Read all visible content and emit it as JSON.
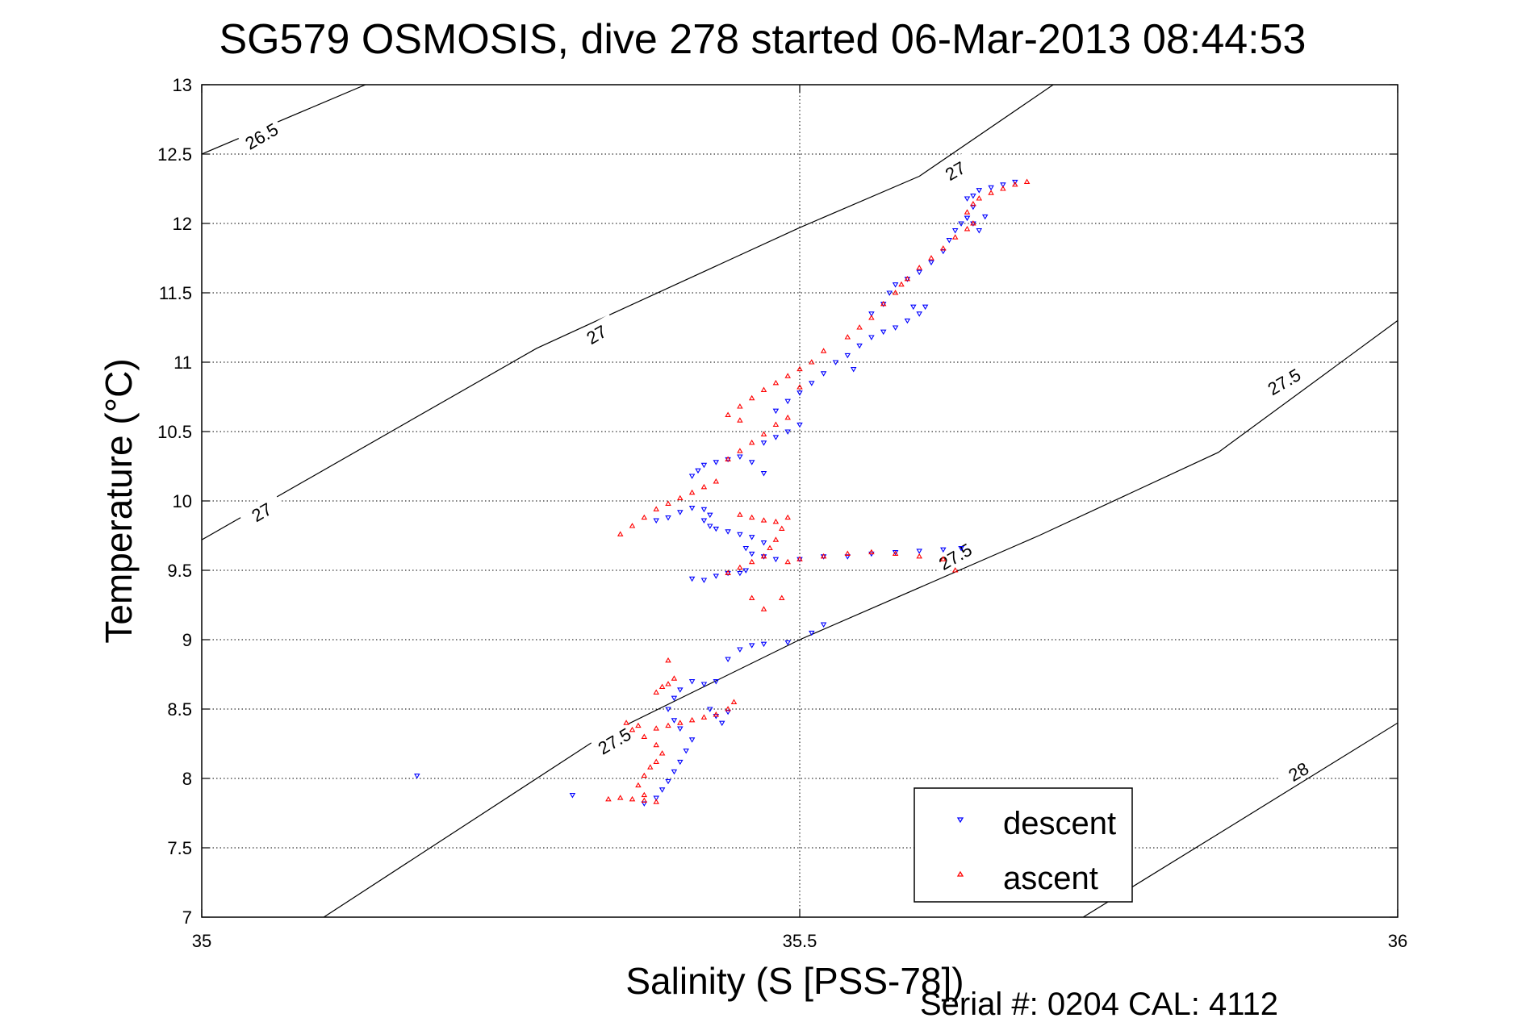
{
  "chart_data": {
    "type": "scatter",
    "title": "SG579 OSMOSIS, dive 278 started 06-Mar-2013 08:44:53",
    "xlabel": "Salinity (S [PSS-78])",
    "ylabel": "Temperature (°C)",
    "footer": "Serial #: 0204  CAL: 4112",
    "xlim": [
      35,
      36
    ],
    "ylim": [
      7,
      13
    ],
    "xticks": [
      "35",
      "35.5",
      "36"
    ],
    "yticks": [
      "7",
      "7.5",
      "8",
      "8.5",
      "9",
      "9.5",
      "10",
      "10.5",
      "11",
      "11.5",
      "12",
      "12.5",
      "13"
    ],
    "grid": true,
    "legend_position": "bottom-right",
    "density_contours": [
      {
        "label": "26.5",
        "points": [
          [
            35.0,
            12.5
          ],
          [
            35.137,
            13.0
          ]
        ],
        "label_at": [
          35.05,
          12.63
        ],
        "label_angle": -30
      },
      {
        "label": "27",
        "points": [
          [
            35.0,
            9.72
          ],
          [
            35.28,
            11.1
          ],
          [
            35.5,
            11.97
          ],
          [
            35.6,
            12.34
          ],
          [
            35.712,
            13.0
          ]
        ],
        "label_at": [
          35.05,
          9.92
        ],
        "label_angle": -30
      },
      {
        "label": "27",
        "points": [
          [
            35.0,
            9.72
          ],
          [
            35.28,
            11.1
          ],
          [
            35.5,
            11.97
          ],
          [
            35.6,
            12.34
          ],
          [
            35.712,
            13.0
          ]
        ],
        "label_at": [
          35.33,
          11.2
        ],
        "label_angle": -30
      },
      {
        "label": "27",
        "points": [
          [
            35.0,
            9.72
          ],
          [
            35.28,
            11.1
          ],
          [
            35.5,
            11.97
          ],
          [
            35.6,
            12.34
          ],
          [
            35.712,
            13.0
          ]
        ],
        "label_at": [
          35.63,
          12.38
        ],
        "label_angle": -30
      },
      {
        "label": "27.5",
        "points": [
          [
            35.102,
            7.0
          ],
          [
            35.2,
            7.55
          ],
          [
            35.33,
            8.28
          ],
          [
            35.5,
            9.0
          ],
          [
            35.7,
            9.75
          ],
          [
            35.85,
            10.35
          ],
          [
            36.0,
            11.3
          ]
        ],
        "label_at": [
          35.345,
          8.27
        ],
        "label_angle": -30
      },
      {
        "label": "27.5",
        "points": [
          [
            35.102,
            7.0
          ],
          [
            35.2,
            7.55
          ],
          [
            35.33,
            8.28
          ],
          [
            35.5,
            9.0
          ],
          [
            35.7,
            9.75
          ],
          [
            35.85,
            10.35
          ],
          [
            36.0,
            11.3
          ]
        ],
        "label_at": [
          35.63,
          9.6
        ],
        "label_angle": -30
      },
      {
        "label": "27.5",
        "points": [
          [
            35.102,
            7.0
          ],
          [
            35.2,
            7.55
          ],
          [
            35.33,
            8.28
          ],
          [
            35.5,
            9.0
          ],
          [
            35.7,
            9.75
          ],
          [
            35.85,
            10.35
          ],
          [
            36.0,
            11.3
          ]
        ],
        "label_at": [
          35.905,
          10.86
        ],
        "label_angle": -30
      },
      {
        "label": "28",
        "points": [
          [
            35.737,
            7.0
          ],
          [
            35.85,
            7.6
          ],
          [
            36.0,
            8.4
          ]
        ],
        "label_at": [
          35.917,
          8.05
        ],
        "label_angle": -30
      }
    ],
    "series": [
      {
        "name": "descent",
        "color": "#0000ff",
        "marker": "triangle-down",
        "points": [
          [
            35.18,
            8.02
          ],
          [
            35.31,
            7.88
          ],
          [
            35.37,
            7.82
          ],
          [
            35.38,
            7.86
          ],
          [
            35.385,
            7.92
          ],
          [
            35.39,
            7.98
          ],
          [
            35.395,
            8.05
          ],
          [
            35.4,
            8.12
          ],
          [
            35.405,
            8.2
          ],
          [
            35.41,
            8.28
          ],
          [
            35.4,
            8.36
          ],
          [
            35.395,
            8.42
          ],
          [
            35.39,
            8.5
          ],
          [
            35.395,
            8.58
          ],
          [
            35.4,
            8.64
          ],
          [
            35.41,
            8.7
          ],
          [
            35.42,
            8.68
          ],
          [
            35.43,
            8.7
          ],
          [
            35.425,
            8.5
          ],
          [
            35.43,
            8.45
          ],
          [
            35.44,
            8.48
          ],
          [
            35.435,
            8.4
          ],
          [
            35.44,
            8.86
          ],
          [
            35.45,
            8.93
          ],
          [
            35.46,
            8.96
          ],
          [
            35.47,
            8.97
          ],
          [
            35.49,
            8.98
          ],
          [
            35.51,
            9.05
          ],
          [
            35.52,
            9.11
          ],
          [
            35.41,
            9.44
          ],
          [
            35.42,
            9.43
          ],
          [
            35.43,
            9.46
          ],
          [
            35.44,
            9.48
          ],
          [
            35.45,
            9.48
          ],
          [
            35.455,
            9.5
          ],
          [
            35.38,
            9.86
          ],
          [
            35.39,
            9.88
          ],
          [
            35.4,
            9.92
          ],
          [
            35.41,
            9.95
          ],
          [
            35.42,
            9.94
          ],
          [
            35.425,
            9.9
          ],
          [
            35.42,
            9.86
          ],
          [
            35.425,
            9.82
          ],
          [
            35.43,
            9.8
          ],
          [
            35.44,
            9.78
          ],
          [
            35.45,
            9.76
          ],
          [
            35.46,
            9.74
          ],
          [
            35.47,
            9.7
          ],
          [
            35.455,
            9.66
          ],
          [
            35.46,
            9.62
          ],
          [
            35.47,
            9.6
          ],
          [
            35.48,
            9.58
          ],
          [
            35.5,
            9.58
          ],
          [
            35.52,
            9.6
          ],
          [
            35.54,
            9.6
          ],
          [
            35.56,
            9.62
          ],
          [
            35.58,
            9.63
          ],
          [
            35.6,
            9.64
          ],
          [
            35.62,
            9.65
          ],
          [
            35.635,
            9.66
          ],
          [
            35.47,
            10.2
          ],
          [
            35.46,
            10.28
          ],
          [
            35.45,
            10.32
          ],
          [
            35.44,
            10.3
          ],
          [
            35.43,
            10.28
          ],
          [
            35.42,
            10.26
          ],
          [
            35.415,
            10.22
          ],
          [
            35.41,
            10.18
          ],
          [
            35.47,
            10.42
          ],
          [
            35.48,
            10.46
          ],
          [
            35.49,
            10.5
          ],
          [
            35.5,
            10.55
          ],
          [
            35.48,
            10.65
          ],
          [
            35.49,
            10.72
          ],
          [
            35.5,
            10.78
          ],
          [
            35.51,
            10.85
          ],
          [
            35.52,
            10.92
          ],
          [
            35.53,
            11.0
          ],
          [
            35.54,
            11.05
          ],
          [
            35.545,
            10.95
          ],
          [
            35.55,
            11.12
          ],
          [
            35.56,
            11.18
          ],
          [
            35.57,
            11.22
          ],
          [
            35.58,
            11.25
          ],
          [
            35.59,
            11.3
          ],
          [
            35.6,
            11.35
          ],
          [
            35.605,
            11.4
          ],
          [
            35.595,
            11.4
          ],
          [
            35.56,
            11.35
          ],
          [
            35.57,
            11.42
          ],
          [
            35.575,
            11.5
          ],
          [
            35.58,
            11.56
          ],
          [
            35.59,
            11.6
          ],
          [
            35.6,
            11.65
          ],
          [
            35.61,
            11.72
          ],
          [
            35.62,
            11.8
          ],
          [
            35.625,
            11.88
          ],
          [
            35.63,
            11.95
          ],
          [
            35.635,
            12.0
          ],
          [
            35.64,
            12.04
          ],
          [
            35.645,
            12.0
          ],
          [
            35.65,
            11.95
          ],
          [
            35.655,
            12.05
          ],
          [
            35.645,
            12.12
          ],
          [
            35.64,
            12.18
          ],
          [
            35.645,
            12.2
          ],
          [
            35.65,
            12.24
          ],
          [
            35.66,
            12.26
          ],
          [
            35.67,
            12.28
          ],
          [
            35.68,
            12.3
          ],
          [
            35.64,
            12.04
          ]
        ]
      },
      {
        "name": "ascent",
        "color": "#ff0000",
        "marker": "triangle-up",
        "points": [
          [
            35.34,
            7.85
          ],
          [
            35.35,
            7.86
          ],
          [
            35.36,
            7.85
          ],
          [
            35.37,
            7.84
          ],
          [
            35.38,
            7.83
          ],
          [
            35.37,
            7.88
          ],
          [
            35.365,
            7.95
          ],
          [
            35.37,
            8.02
          ],
          [
            35.375,
            8.08
          ],
          [
            35.38,
            8.12
          ],
          [
            35.385,
            8.18
          ],
          [
            35.38,
            8.24
          ],
          [
            35.37,
            8.3
          ],
          [
            35.36,
            8.35
          ],
          [
            35.355,
            8.4
          ],
          [
            35.365,
            8.38
          ],
          [
            35.38,
            8.36
          ],
          [
            35.39,
            8.38
          ],
          [
            35.4,
            8.4
          ],
          [
            35.41,
            8.42
          ],
          [
            35.42,
            8.44
          ],
          [
            35.43,
            8.46
          ],
          [
            35.44,
            8.5
          ],
          [
            35.445,
            8.55
          ],
          [
            35.38,
            8.62
          ],
          [
            35.385,
            8.66
          ],
          [
            35.39,
            8.68
          ],
          [
            35.395,
            8.72
          ],
          [
            35.39,
            8.85
          ],
          [
            35.35,
            9.76
          ],
          [
            35.36,
            9.82
          ],
          [
            35.37,
            9.88
          ],
          [
            35.38,
            9.94
          ],
          [
            35.39,
            9.98
          ],
          [
            35.4,
            10.02
          ],
          [
            35.41,
            10.06
          ],
          [
            35.42,
            10.1
          ],
          [
            35.43,
            10.14
          ],
          [
            35.45,
            9.9
          ],
          [
            35.46,
            9.88
          ],
          [
            35.47,
            9.86
          ],
          [
            35.48,
            9.85
          ],
          [
            35.49,
            9.88
          ],
          [
            35.485,
            9.8
          ],
          [
            35.48,
            9.72
          ],
          [
            35.475,
            9.66
          ],
          [
            35.47,
            9.6
          ],
          [
            35.46,
            9.56
          ],
          [
            35.45,
            9.52
          ],
          [
            35.44,
            9.48
          ],
          [
            35.46,
            9.3
          ],
          [
            35.47,
            9.22
          ],
          [
            35.485,
            9.3
          ],
          [
            35.49,
            9.56
          ],
          [
            35.5,
            9.58
          ],
          [
            35.52,
            9.6
          ],
          [
            35.54,
            9.62
          ],
          [
            35.56,
            9.63
          ],
          [
            35.58,
            9.62
          ],
          [
            35.6,
            9.6
          ],
          [
            35.62,
            9.58
          ],
          [
            35.63,
            9.5
          ],
          [
            35.44,
            10.3
          ],
          [
            35.45,
            10.36
          ],
          [
            35.46,
            10.42
          ],
          [
            35.47,
            10.48
          ],
          [
            35.48,
            10.55
          ],
          [
            35.49,
            10.6
          ],
          [
            35.45,
            10.58
          ],
          [
            35.44,
            10.62
          ],
          [
            35.45,
            10.68
          ],
          [
            35.46,
            10.74
          ],
          [
            35.47,
            10.8
          ],
          [
            35.48,
            10.85
          ],
          [
            35.49,
            10.9
          ],
          [
            35.5,
            10.95
          ],
          [
            35.51,
            11.0
          ],
          [
            35.52,
            11.08
          ],
          [
            35.5,
            10.82
          ],
          [
            35.54,
            11.18
          ],
          [
            35.55,
            11.25
          ],
          [
            35.56,
            11.32
          ],
          [
            35.57,
            11.42
          ],
          [
            35.58,
            11.5
          ],
          [
            35.585,
            11.56
          ],
          [
            35.59,
            11.6
          ],
          [
            35.6,
            11.68
          ],
          [
            35.61,
            11.75
          ],
          [
            35.62,
            11.82
          ],
          [
            35.63,
            11.9
          ],
          [
            35.64,
            11.96
          ],
          [
            35.645,
            12.0
          ],
          [
            35.64,
            12.08
          ],
          [
            35.645,
            12.14
          ],
          [
            35.65,
            12.18
          ],
          [
            35.66,
            12.22
          ],
          [
            35.67,
            12.25
          ],
          [
            35.68,
            12.28
          ],
          [
            35.69,
            12.3
          ]
        ]
      }
    ]
  }
}
